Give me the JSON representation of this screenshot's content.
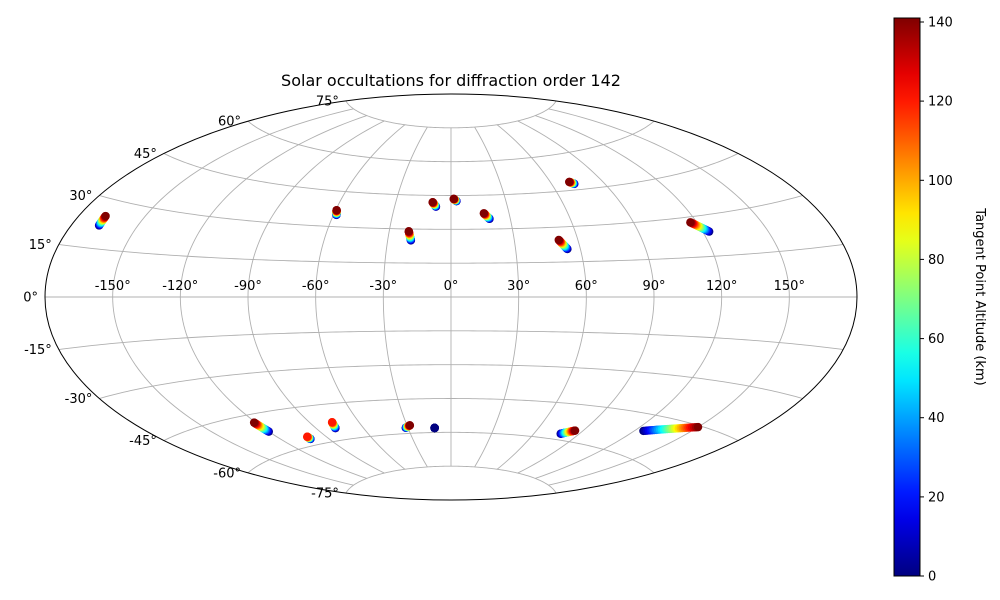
{
  "chart_data": {
    "type": "scatter",
    "projection": "aitoff",
    "title": "Solar occultations for diffraction order 142",
    "lon_ticks": [
      -150,
      -120,
      -90,
      -60,
      -30,
      0,
      30,
      60,
      90,
      120,
      150
    ],
    "lat_ticks": [
      -75,
      -60,
      -45,
      -30,
      -15,
      0,
      15,
      30,
      45,
      60,
      75
    ],
    "lon_tick_labels": [
      "-150°",
      "-120°",
      "-90°",
      "-60°",
      "-30°",
      "0°",
      "30°",
      "60°",
      "90°",
      "120°",
      "150°"
    ],
    "lat_tick_labels": [
      "-75°",
      "-60°",
      "-45°",
      "-30°",
      "-15°",
      "0°",
      "15°",
      "30°",
      "45°",
      "60°",
      "75°"
    ],
    "grid": true,
    "colorbar": {
      "label": "Tangent Point Altitude (km)",
      "colormap": "jet",
      "range": [
        0,
        141
      ],
      "ticks": [
        0,
        20,
        40,
        60,
        80,
        100,
        120,
        140
      ],
      "tick_labels": [
        "0",
        "20",
        "40",
        "60",
        "80",
        "100",
        "120",
        "140"
      ]
    },
    "tracks": [
      {
        "lon_start": -167.5,
        "lat_start": 22,
        "lon_end": -168,
        "lat_end": 25,
        "alt_start": 0,
        "alt_end": 141
      },
      {
        "lon_start": -58.5,
        "lat_start": 35,
        "lon_end": -59.5,
        "lat_end": 37,
        "alt_start": 0,
        "alt_end": 141
      },
      {
        "lon_start": -19,
        "lat_start": 25,
        "lon_end": -20.5,
        "lat_end": 29,
        "alt_start": 0,
        "alt_end": 141
      },
      {
        "lon_start": -8,
        "lat_start": 40,
        "lon_end": -10,
        "lat_end": 42,
        "alt_start": 0,
        "alt_end": 141
      },
      {
        "lon_start": 3,
        "lat_start": 42.5,
        "lon_end": 1.5,
        "lat_end": 43.5,
        "alt_start": 0,
        "alt_end": 141
      },
      {
        "lon_start": 19.5,
        "lat_start": 34.5,
        "lon_end": 17,
        "lat_end": 37,
        "alt_start": 0,
        "alt_end": 141
      },
      {
        "lon_start": 54,
        "lat_start": 20.5,
        "lon_end": 51,
        "lat_end": 24.5,
        "alt_start": 0,
        "alt_end": 141
      },
      {
        "lon_start": 73,
        "lat_start": 47.5,
        "lon_end": 71,
        "lat_end": 48.5,
        "alt_start": 0,
        "alt_end": 141
      },
      {
        "lon_start": 123,
        "lat_start": 24,
        "lon_end": 117,
        "lat_end": 28,
        "alt_start": 0,
        "alt_end": 141
      },
      {
        "lon_start": -120,
        "lat_start": -52,
        "lon_end": -121,
        "lat_end": -48,
        "alt_start": 0,
        "alt_end": 141
      },
      {
        "lon_start": -102,
        "lat_start": -57.5,
        "lon_end": -102,
        "lat_end": -56.5,
        "alt_start": 0,
        "alt_end": 120
      },
      {
        "lon_start": -78,
        "lat_start": -55,
        "lon_end": -76.5,
        "lat_end": -52.5,
        "alt_start": 0,
        "alt_end": 120
      },
      {
        "lon_start": -31.5,
        "lat_start": -57.5,
        "lon_end": -28,
        "lat_end": -56.5,
        "alt_start": 0,
        "alt_end": 141
      },
      {
        "lon_start": -11.5,
        "lat_start": -58,
        "lon_end": -11.5,
        "lat_end": -58,
        "alt_start": 0,
        "alt_end": 0
      },
      {
        "lon_start": 78,
        "lat_start": -57.5,
        "lon_end": 85,
        "lat_end": -55.5,
        "alt_start": 0,
        "alt_end": 141
      },
      {
        "lon_start": 125,
        "lat_start": -51,
        "lon_end": 150,
        "lat_end": -45.5,
        "alt_start": 0,
        "alt_end": 141
      }
    ]
  }
}
